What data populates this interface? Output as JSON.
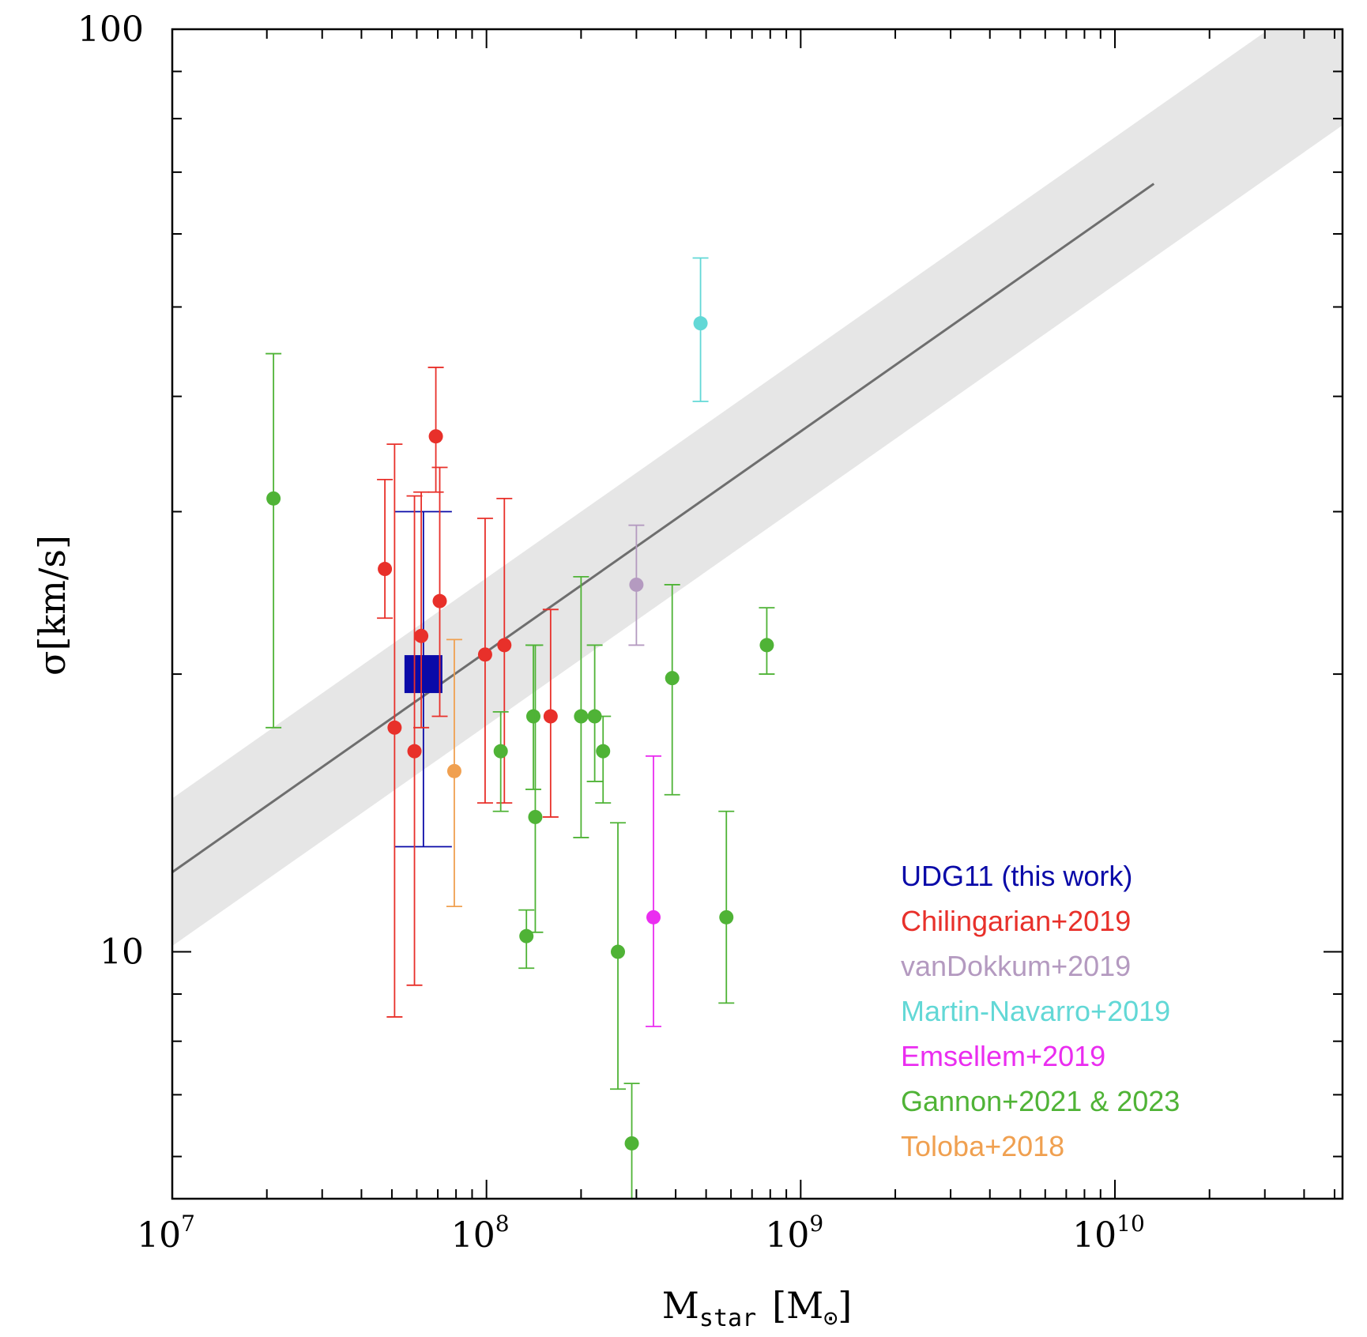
{
  "chart_data": {
    "type": "scatter",
    "title": "",
    "xlabel": {
      "main": "M",
      "sub": "star",
      "unit": "[M",
      "unit_sub": "⊙",
      "unit_close": "]"
    },
    "ylabel": "σ[km/s]",
    "xscale": "log",
    "yscale": "log",
    "xlim": [
      10000000,
      53000000000
    ],
    "ylim": [
      5.4,
      100
    ],
    "x_ticks": [
      {
        "value": 10000000,
        "base": "10",
        "exp": "7"
      },
      {
        "value": 100000000,
        "base": "10",
        "exp": "8"
      },
      {
        "value": 1000000000,
        "base": "10",
        "exp": "9"
      },
      {
        "value": 10000000000,
        "base": "10",
        "exp": "10"
      }
    ],
    "y_ticks": [
      {
        "value": 10,
        "label": "10"
      },
      {
        "value": 100,
        "label": "100"
      }
    ],
    "relation": {
      "x": [
        10000000,
        13300000000
      ],
      "y": [
        12.2,
        68.0
      ],
      "band_dex": 0.08,
      "line_color": "#6e6e6e",
      "band_color": "#e6e6e6"
    },
    "legend": {
      "position": "bottom-right"
    },
    "series": [
      {
        "name": "UDG11 (this work)",
        "color": "#0a0aa8",
        "marker": "square",
        "points": [
          {
            "x": 63000000,
            "y": 20.0,
            "ylo": 13.0,
            "yhi": 30.0,
            "xlo": 57000000,
            "xhi": 74000000
          }
        ]
      },
      {
        "name": "Chilingarian+2019",
        "color": "#e8302a",
        "marker": "circle",
        "points": [
          {
            "x": 47500000,
            "y": 26.0,
            "ylo": 23.0,
            "yhi": 32.5
          },
          {
            "x": 51000000,
            "y": 17.5,
            "ylo": 8.5,
            "yhi": 35.5
          },
          {
            "x": 59000000,
            "y": 16.5,
            "ylo": 9.2,
            "yhi": 31.2
          },
          {
            "x": 62000000,
            "y": 22.0,
            "ylo": 17.5,
            "yhi": 31.5
          },
          {
            "x": 69000000,
            "y": 36.2,
            "ylo": 31.5,
            "yhi": 43.0
          },
          {
            "x": 71000000,
            "y": 24.0,
            "ylo": 18.0,
            "yhi": 33.5
          },
          {
            "x": 99000000,
            "y": 21.0,
            "ylo": 14.5,
            "yhi": 29.5
          },
          {
            "x": 114000000,
            "y": 21.5,
            "ylo": 14.5,
            "yhi": 31.0
          },
          {
            "x": 160000000,
            "y": 18.0,
            "ylo": 14.0,
            "yhi": 23.5
          }
        ]
      },
      {
        "name": "vanDokkum+2019",
        "color": "#b49ac0",
        "marker": "circle",
        "points": [
          {
            "x": 300000000,
            "y": 25.0,
            "ylo": 21.5,
            "yhi": 29.0
          }
        ]
      },
      {
        "name": "Martin-Navarro+2019",
        "color": "#62d8d6",
        "marker": "circle",
        "points": [
          {
            "x": 480000000,
            "y": 48.0,
            "ylo": 39.5,
            "yhi": 56.5
          }
        ]
      },
      {
        "name": "Emsellem+2019",
        "color": "#ea2df0",
        "marker": "circle",
        "points": [
          {
            "x": 340000000,
            "y": 10.9,
            "ylo": 8.3,
            "yhi": 16.3
          }
        ]
      },
      {
        "name": "Gannon+2021 & 2023",
        "color": "#4fb336",
        "marker": "circle",
        "points": [
          {
            "x": 21000000,
            "y": 31.0,
            "ylo": 17.5,
            "yhi": 44.5
          },
          {
            "x": 111000000,
            "y": 16.5,
            "ylo": 14.2,
            "yhi": 18.2
          },
          {
            "x": 134000000,
            "y": 10.4,
            "ylo": 9.6,
            "yhi": 11.1
          },
          {
            "x": 141000000,
            "y": 18.0,
            "ylo": 15.0,
            "yhi": 21.5
          },
          {
            "x": 143000000,
            "y": 14.0,
            "ylo": 10.5,
            "yhi": 21.5
          },
          {
            "x": 200000000,
            "y": 18.0,
            "ylo": 13.3,
            "yhi": 25.5
          },
          {
            "x": 221000000,
            "y": 18.0,
            "ylo": 15.3,
            "yhi": 21.5
          },
          {
            "x": 235000000,
            "y": 16.5,
            "ylo": 14.5,
            "yhi": 18.0
          },
          {
            "x": 262000000,
            "y": 10.0,
            "ylo": 7.1,
            "yhi": 13.8
          },
          {
            "x": 290000000,
            "y": 6.2,
            "ylo": 5.4,
            "yhi": 7.2
          },
          {
            "x": 390000000,
            "y": 19.8,
            "ylo": 14.8,
            "yhi": 25.0
          },
          {
            "x": 580000000,
            "y": 10.9,
            "ylo": 8.8,
            "yhi": 14.2
          },
          {
            "x": 780000000,
            "y": 21.5,
            "ylo": 20.0,
            "yhi": 23.6
          }
        ]
      },
      {
        "name": "Toloba+2018",
        "color": "#f0a050",
        "marker": "circle",
        "points": [
          {
            "x": 79000000,
            "y": 15.7,
            "ylo": 11.2,
            "yhi": 21.8
          }
        ]
      }
    ]
  }
}
